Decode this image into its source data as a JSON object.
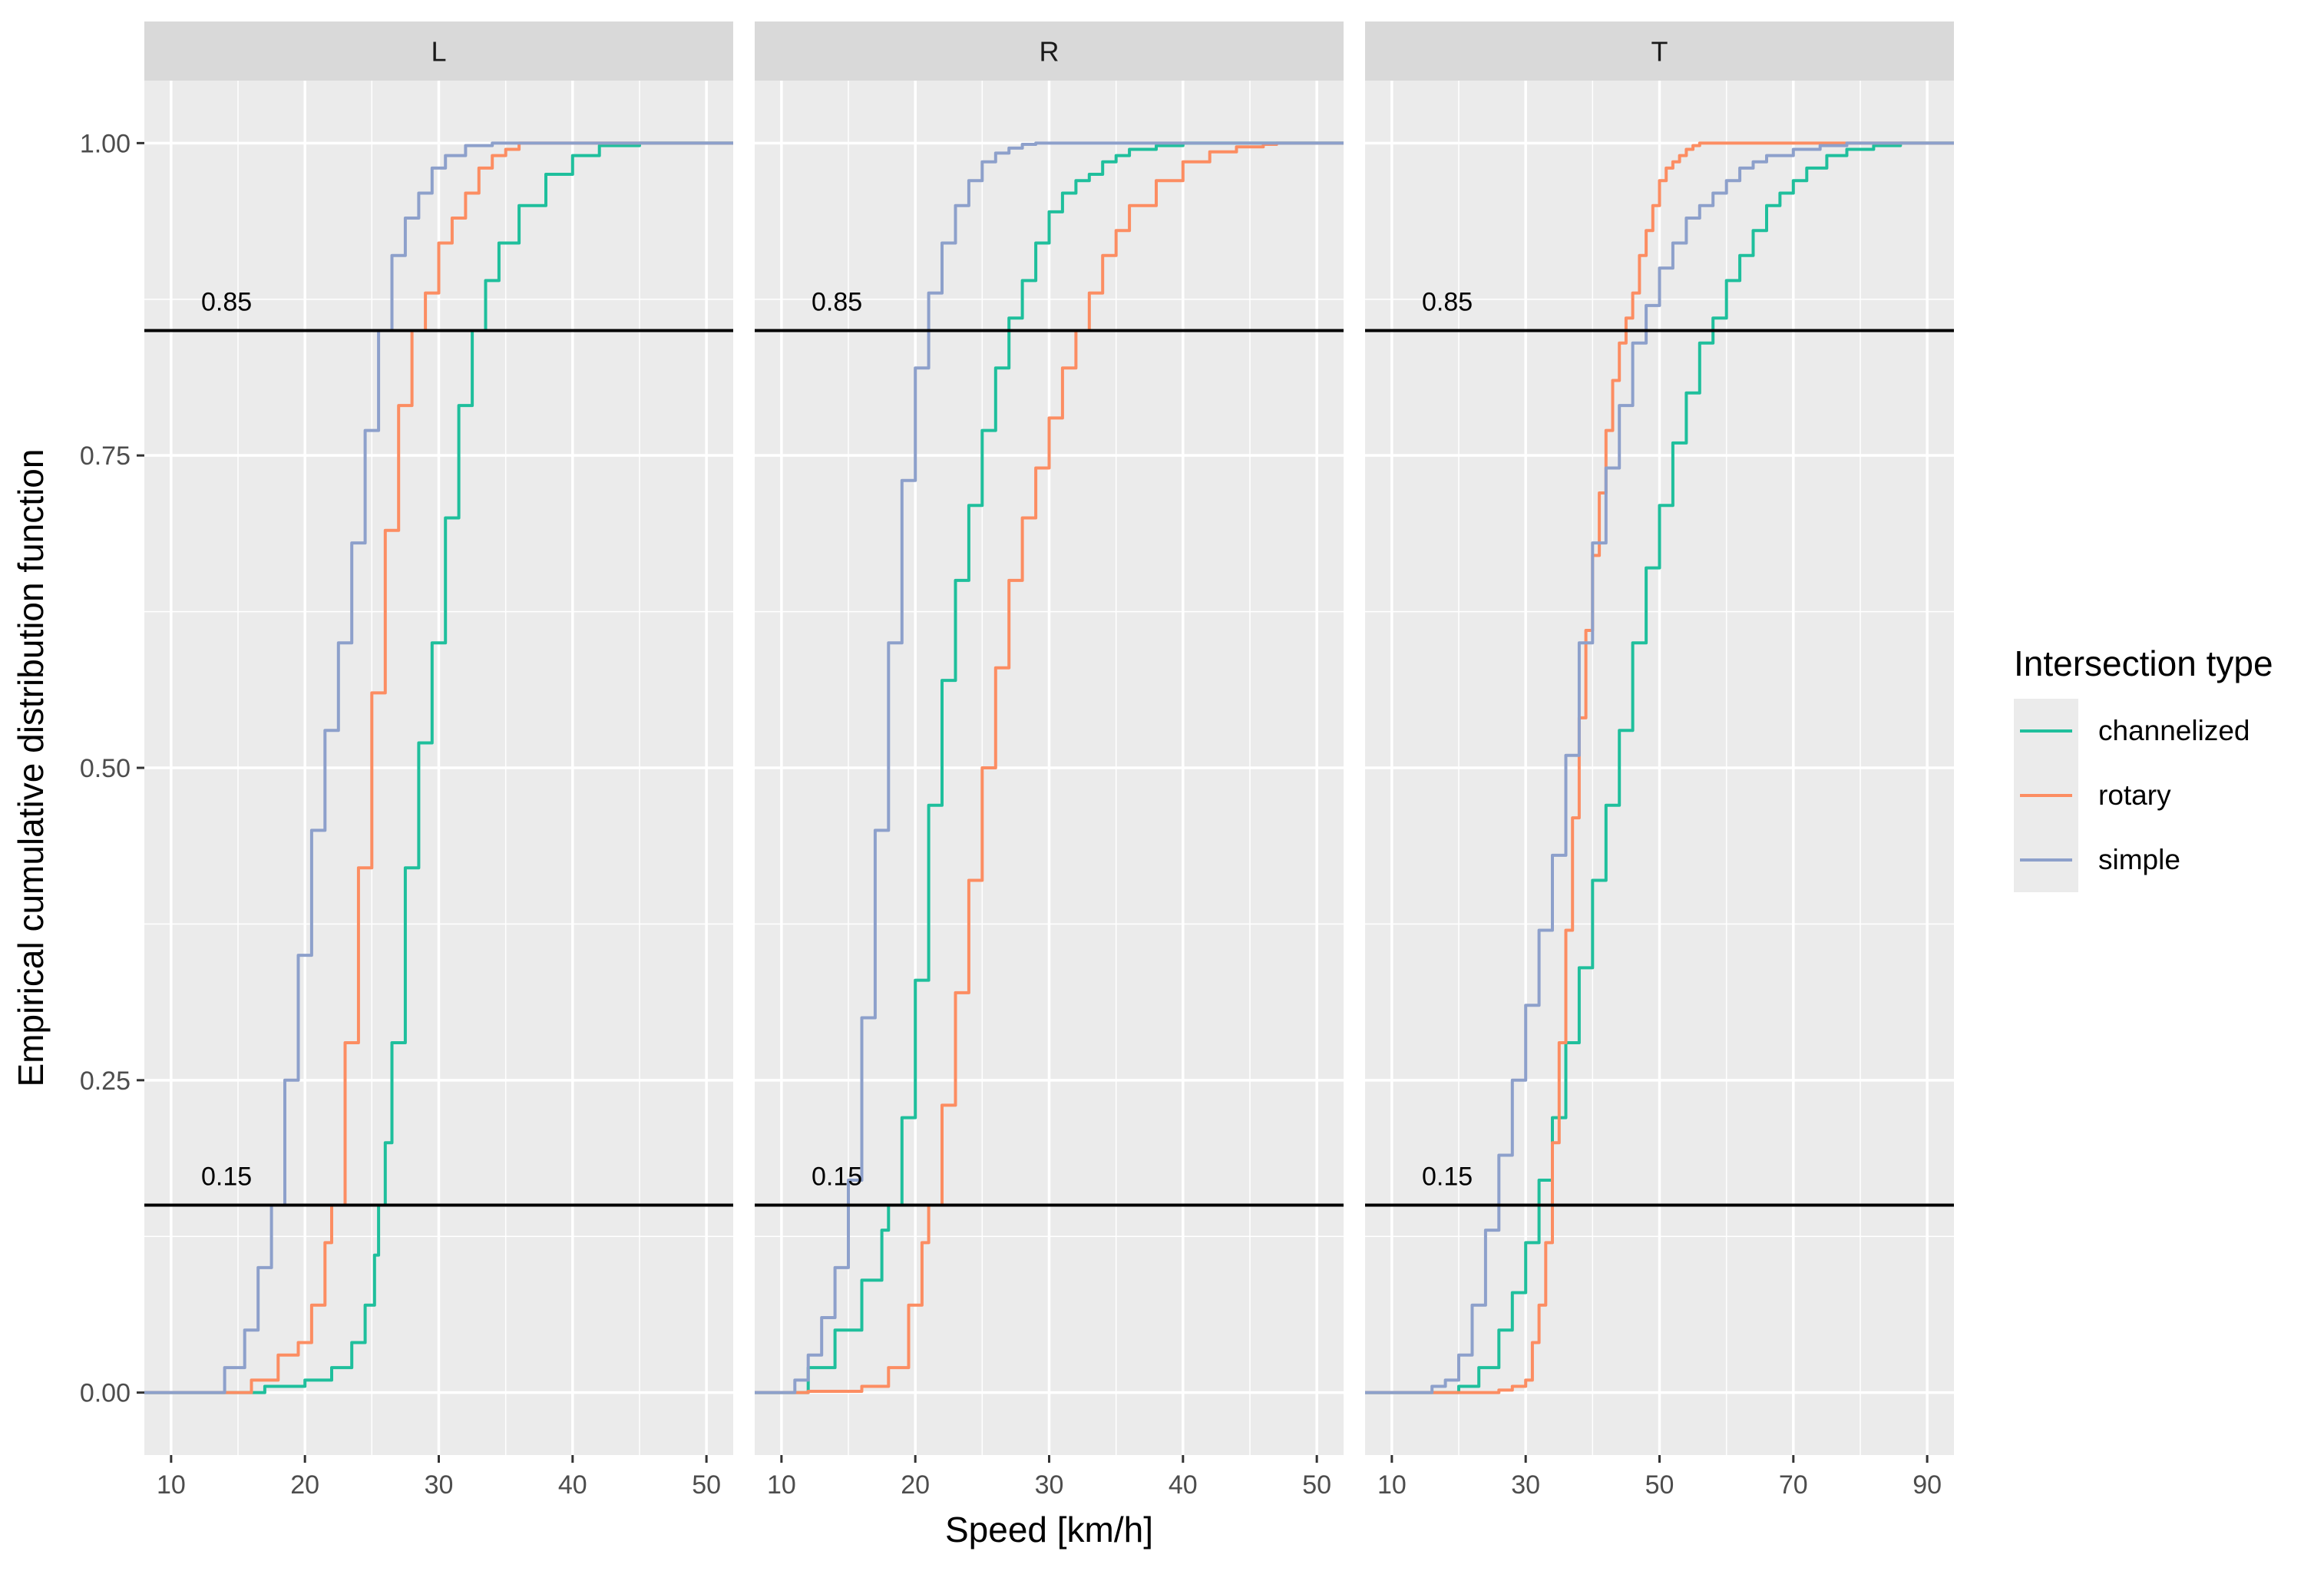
{
  "chart_data": {
    "type": "line",
    "subtype": "ecdf-faceted",
    "ylabel": "Empirical cumulative distribution function",
    "xlabel": "Speed [km/h]",
    "ylim": [
      -0.05,
      1.05
    ],
    "yticks": [
      0,
      0.25,
      0.5,
      0.75,
      1
    ],
    "ytick_labels": [
      "0.00",
      "0.25",
      "0.50",
      "0.75",
      "1.00"
    ],
    "hlines": [
      {
        "value": 0.85,
        "label": "0.85"
      },
      {
        "value": 0.15,
        "label": "0.15"
      }
    ],
    "legend": {
      "title": "Intersection type",
      "position": "right",
      "entries": [
        {
          "name": "channelized",
          "color": "#1fbf9c"
        },
        {
          "name": "rotary",
          "color": "#fc8d62"
        },
        {
          "name": "simple",
          "color": "#8da0cb"
        }
      ]
    },
    "panels": [
      {
        "title": "L",
        "xlim": [
          8,
          52
        ],
        "xticks": [
          10,
          20,
          30,
          40,
          50
        ],
        "xtick_labels": [
          "10",
          "20",
          "30",
          "40",
          "50"
        ],
        "series": [
          {
            "name": "channelized",
            "x": [
              8,
              15,
              17,
              20,
              22,
              23.5,
              24.5,
              25.2,
              25.5,
              26,
              26.5,
              27.5,
              28.5,
              29.5,
              30.5,
              31.5,
              32.5,
              33.5,
              34.5,
              36,
              38,
              40,
              42,
              45,
              52
            ],
            "y": [
              0,
              0,
              0.005,
              0.01,
              0.02,
              0.04,
              0.07,
              0.11,
              0.15,
              0.2,
              0.28,
              0.42,
              0.52,
              0.6,
              0.7,
              0.79,
              0.85,
              0.89,
              0.92,
              0.95,
              0.975,
              0.99,
              0.998,
              1,
              1
            ]
          },
          {
            "name": "rotary",
            "x": [
              8,
              14,
              16,
              18,
              19.5,
              20.5,
              21.5,
              22,
              23,
              24,
              25,
              26,
              27,
              28,
              29,
              30,
              31,
              32,
              33,
              34,
              35,
              36,
              52
            ],
            "y": [
              0,
              0,
              0.01,
              0.03,
              0.04,
              0.07,
              0.12,
              0.15,
              0.28,
              0.42,
              0.56,
              0.69,
              0.79,
              0.85,
              0.88,
              0.92,
              0.94,
              0.96,
              0.98,
              0.99,
              0.995,
              1,
              1
            ]
          },
          {
            "name": "simple",
            "x": [
              8,
              12.5,
              14,
              15.5,
              16.5,
              17.5,
              18.5,
              19.5,
              20.5,
              21.5,
              22.5,
              23.5,
              24.5,
              25.5,
              26.5,
              27.5,
              28.5,
              29.5,
              30.5,
              32,
              34,
              52
            ],
            "y": [
              0,
              0,
              0.02,
              0.05,
              0.1,
              0.15,
              0.25,
              0.35,
              0.45,
              0.53,
              0.6,
              0.68,
              0.77,
              0.85,
              0.91,
              0.94,
              0.96,
              0.98,
              0.99,
              0.998,
              1,
              1
            ]
          }
        ]
      },
      {
        "title": "R",
        "xlim": [
          8,
          52
        ],
        "xticks": [
          10,
          20,
          30,
          40,
          50
        ],
        "xtick_labels": [
          "10",
          "20",
          "30",
          "40",
          "50"
        ],
        "series": [
          {
            "name": "channelized",
            "x": [
              8,
              10,
              12,
              14,
              16,
              17.5,
              18,
              19,
              20,
              21,
              22,
              23,
              24,
              25,
              26,
              27,
              28,
              29,
              30,
              31,
              32,
              33,
              34,
              35,
              36,
              38,
              40,
              44,
              52
            ],
            "y": [
              0,
              0,
              0.02,
              0.05,
              0.09,
              0.13,
              0.15,
              0.22,
              0.33,
              0.47,
              0.57,
              0.65,
              0.71,
              0.77,
              0.82,
              0.86,
              0.89,
              0.92,
              0.945,
              0.96,
              0.97,
              0.975,
              0.985,
              0.99,
              0.995,
              0.998,
              1,
              1,
              1
            ]
          },
          {
            "name": "rotary",
            "x": [
              8,
              10,
              12,
              16,
              18,
              19.5,
              20.5,
              21,
              22,
              23,
              24,
              25,
              26,
              27,
              28,
              29,
              30,
              31,
              32,
              33,
              34,
              35,
              36,
              38,
              40,
              42,
              44,
              46,
              47,
              52
            ],
            "y": [
              0,
              0,
              0.001,
              0.005,
              0.02,
              0.07,
              0.12,
              0.15,
              0.23,
              0.32,
              0.41,
              0.5,
              0.58,
              0.65,
              0.7,
              0.74,
              0.78,
              0.82,
              0.85,
              0.88,
              0.91,
              0.93,
              0.95,
              0.97,
              0.985,
              0.993,
              0.997,
              0.999,
              1,
              1
            ]
          },
          {
            "name": "simple",
            "x": [
              8,
              10,
              11,
              12,
              13,
              14,
              15,
              16,
              17,
              18,
              19,
              20,
              21,
              22,
              23,
              24,
              25,
              26,
              27,
              28,
              29,
              30,
              52
            ],
            "y": [
              0,
              0,
              0.01,
              0.03,
              0.06,
              0.1,
              0.17,
              0.3,
              0.45,
              0.6,
              0.73,
              0.82,
              0.88,
              0.92,
              0.95,
              0.97,
              0.985,
              0.992,
              0.996,
              0.999,
              1,
              1,
              1
            ]
          }
        ]
      },
      {
        "title": "T",
        "xlim": [
          6,
          94
        ],
        "xticks": [
          10,
          30,
          50,
          70,
          90
        ],
        "xtick_labels": [
          "10",
          "30",
          "50",
          "70",
          "90"
        ],
        "series": [
          {
            "name": "channelized",
            "x": [
              6,
              15,
              20,
              23,
              26,
              28,
              30,
              32,
              34,
              36,
              38,
              40,
              42,
              44,
              46,
              48,
              50,
              52,
              54,
              56,
              58,
              60,
              62,
              64,
              66,
              68,
              70,
              72,
              75,
              78,
              82,
              86,
              90,
              94
            ],
            "y": [
              0,
              0,
              0.005,
              0.02,
              0.05,
              0.08,
              0.12,
              0.17,
              0.22,
              0.28,
              0.34,
              0.41,
              0.47,
              0.53,
              0.6,
              0.66,
              0.71,
              0.76,
              0.8,
              0.84,
              0.86,
              0.89,
              0.91,
              0.93,
              0.95,
              0.96,
              0.97,
              0.98,
              0.99,
              0.995,
              0.998,
              1,
              1,
              1
            ]
          },
          {
            "name": "rotary",
            "x": [
              6,
              20,
              26,
              28,
              30,
              31,
              32,
              33,
              34,
              35,
              36,
              37,
              38,
              39,
              40,
              41,
              42,
              43,
              44,
              45,
              46,
              47,
              48,
              49,
              50,
              51,
              52,
              53,
              54,
              55,
              56,
              58,
              60,
              62,
              94
            ],
            "y": [
              0,
              0,
              0.002,
              0.005,
              0.01,
              0.04,
              0.07,
              0.12,
              0.2,
              0.28,
              0.37,
              0.46,
              0.54,
              0.61,
              0.67,
              0.72,
              0.77,
              0.81,
              0.84,
              0.86,
              0.88,
              0.91,
              0.93,
              0.95,
              0.97,
              0.98,
              0.985,
              0.99,
              0.995,
              0.998,
              1,
              1,
              1,
              1,
              1
            ]
          },
          {
            "name": "simple",
            "x": [
              6,
              12,
              16,
              18,
              20,
              22,
              24,
              26,
              28,
              30,
              32,
              34,
              36,
              38,
              40,
              42,
              44,
              46,
              48,
              50,
              52,
              54,
              56,
              58,
              60,
              62,
              64,
              66,
              70,
              74,
              78,
              82,
              86,
              90,
              94
            ],
            "y": [
              0,
              0,
              0.005,
              0.01,
              0.03,
              0.07,
              0.13,
              0.19,
              0.25,
              0.31,
              0.37,
              0.43,
              0.51,
              0.6,
              0.68,
              0.74,
              0.79,
              0.84,
              0.87,
              0.9,
              0.92,
              0.94,
              0.95,
              0.96,
              0.97,
              0.98,
              0.985,
              0.99,
              0.995,
              0.998,
              1,
              1,
              1,
              1,
              1
            ]
          }
        ]
      }
    ]
  }
}
